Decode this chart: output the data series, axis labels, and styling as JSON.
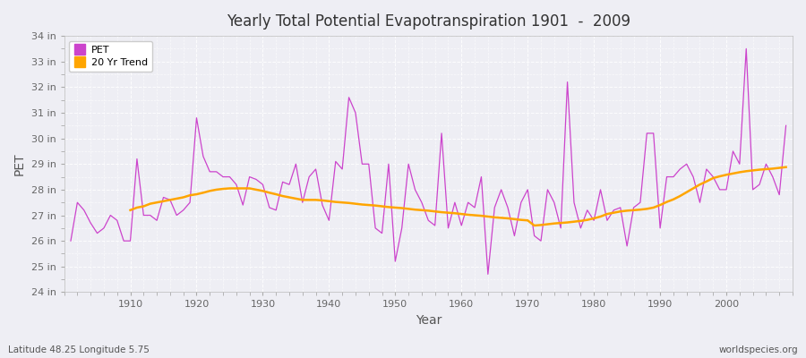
{
  "title": "Yearly Total Potential Evapotranspiration 1901  -  2009",
  "ylabel": "PET",
  "xlabel": "Year",
  "subtitle": "Latitude 48.25 Longitude 5.75",
  "watermark": "worldspecies.org",
  "ylim": [
    24,
    34
  ],
  "ytick_labels": [
    "24 in",
    "25 in",
    "26 in",
    "27 in",
    "28 in",
    "29 in",
    "30 in",
    "31 in",
    "32 in",
    "33 in",
    "34 in"
  ],
  "ytick_values": [
    24,
    25,
    26,
    27,
    28,
    29,
    30,
    31,
    32,
    33,
    34
  ],
  "pet_color": "#CC44CC",
  "trend_color": "#FFA500",
  "bg_color": "#EEEEF4",
  "plot_bg_color": "#EEEEF4",
  "grid_color": "#FFFFFF",
  "legend_bg": "#FFFFFF",
  "years": [
    1901,
    1902,
    1903,
    1904,
    1905,
    1906,
    1907,
    1908,
    1909,
    1910,
    1911,
    1912,
    1913,
    1914,
    1915,
    1916,
    1917,
    1918,
    1919,
    1920,
    1921,
    1922,
    1923,
    1924,
    1925,
    1926,
    1927,
    1928,
    1929,
    1930,
    1931,
    1932,
    1933,
    1934,
    1935,
    1936,
    1937,
    1938,
    1939,
    1940,
    1941,
    1942,
    1943,
    1944,
    1945,
    1946,
    1947,
    1948,
    1949,
    1950,
    1951,
    1952,
    1953,
    1954,
    1955,
    1956,
    1957,
    1958,
    1959,
    1960,
    1961,
    1962,
    1963,
    1964,
    1965,
    1966,
    1967,
    1968,
    1969,
    1970,
    1971,
    1972,
    1973,
    1974,
    1975,
    1976,
    1977,
    1978,
    1979,
    1980,
    1981,
    1982,
    1983,
    1984,
    1985,
    1986,
    1987,
    1988,
    1989,
    1990,
    1991,
    1992,
    1993,
    1994,
    1995,
    1996,
    1997,
    1998,
    1999,
    2000,
    2001,
    2002,
    2003,
    2004,
    2005,
    2006,
    2007,
    2008,
    2009
  ],
  "pet_values": [
    26.0,
    27.5,
    27.2,
    26.7,
    26.3,
    26.5,
    27.0,
    26.8,
    26.0,
    26.0,
    29.2,
    27.0,
    27.0,
    26.8,
    27.7,
    27.6,
    27.0,
    27.2,
    27.5,
    30.8,
    29.3,
    28.7,
    28.7,
    28.5,
    28.5,
    28.2,
    27.4,
    28.5,
    28.4,
    28.2,
    27.3,
    27.2,
    28.3,
    28.2,
    29.0,
    27.5,
    28.5,
    28.8,
    27.4,
    26.8,
    29.1,
    28.8,
    31.6,
    31.0,
    29.0,
    29.0,
    26.5,
    26.3,
    29.0,
    25.2,
    26.5,
    29.0,
    28.0,
    27.5,
    26.8,
    26.6,
    30.2,
    26.5,
    27.5,
    26.6,
    27.5,
    27.3,
    28.5,
    24.7,
    27.3,
    28.0,
    27.3,
    26.2,
    27.5,
    28.0,
    26.2,
    26.0,
    28.0,
    27.5,
    26.5,
    32.2,
    27.5,
    26.5,
    27.2,
    26.8,
    28.0,
    26.8,
    27.2,
    27.3,
    25.8,
    27.3,
    27.5,
    30.2,
    30.2,
    26.5,
    28.5,
    28.5,
    28.8,
    29.0,
    28.5,
    27.5,
    28.8,
    28.5,
    28.0,
    28.0,
    29.5,
    29.0,
    33.5,
    28.0,
    28.2,
    29.0,
    28.5,
    27.8,
    30.5
  ],
  "trend_years": [
    1910,
    1911,
    1912,
    1913,
    1914,
    1915,
    1916,
    1917,
    1918,
    1919,
    1920,
    1921,
    1922,
    1923,
    1924,
    1925,
    1926,
    1927,
    1928,
    1929,
    1930,
    1931,
    1932,
    1933,
    1934,
    1935,
    1936,
    1937,
    1938,
    1939,
    1940,
    1941,
    1942,
    1943,
    1944,
    1945,
    1946,
    1947,
    1948,
    1949,
    1950,
    1951,
    1952,
    1953,
    1954,
    1955,
    1956,
    1957,
    1958,
    1959,
    1960,
    1961,
    1962,
    1963,
    1964,
    1965,
    1966,
    1967,
    1968,
    1969,
    1970,
    1971,
    1972,
    1973,
    1974,
    1975,
    1976,
    1977,
    1978,
    1979,
    1980,
    1981,
    1982,
    1983,
    1984,
    1985,
    1986,
    1987,
    1988,
    1989,
    1990,
    1991,
    1992,
    1993,
    1994,
    1995,
    1996,
    1997,
    1998,
    1999,
    2000,
    2001,
    2002,
    2003,
    2004,
    2005,
    2006,
    2007,
    2008,
    2009
  ],
  "trend_values": [
    27.2,
    27.3,
    27.35,
    27.45,
    27.5,
    27.55,
    27.6,
    27.65,
    27.7,
    27.78,
    27.82,
    27.88,
    27.95,
    28.0,
    28.03,
    28.05,
    28.05,
    28.05,
    28.05,
    28.0,
    27.95,
    27.88,
    27.82,
    27.75,
    27.7,
    27.65,
    27.6,
    27.6,
    27.6,
    27.58,
    27.55,
    27.52,
    27.5,
    27.48,
    27.45,
    27.42,
    27.4,
    27.38,
    27.35,
    27.32,
    27.3,
    27.28,
    27.25,
    27.22,
    27.2,
    27.18,
    27.15,
    27.12,
    27.1,
    27.08,
    27.05,
    27.02,
    27.0,
    26.98,
    26.95,
    26.92,
    26.9,
    26.88,
    26.85,
    26.82,
    26.8,
    26.6,
    26.62,
    26.65,
    26.68,
    26.7,
    26.72,
    26.75,
    26.78,
    26.82,
    26.88,
    26.95,
    27.05,
    27.1,
    27.15,
    27.18,
    27.2,
    27.22,
    27.25,
    27.3,
    27.4,
    27.52,
    27.62,
    27.75,
    27.9,
    28.05,
    28.2,
    28.32,
    28.45,
    28.52,
    28.58,
    28.63,
    28.68,
    28.72,
    28.75,
    28.78,
    28.8,
    28.82,
    28.85,
    28.88
  ]
}
